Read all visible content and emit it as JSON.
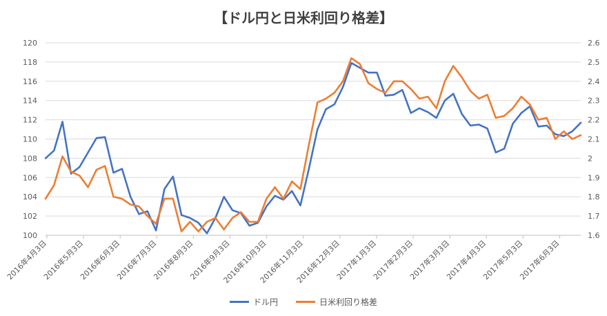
{
  "chart_data": {
    "type": "line",
    "title": "【ドル円と日米利回り格差】",
    "x_tick_labels": [
      "2016年4月3日",
      "2016年5月3日",
      "2016年6月3日",
      "2016年7月3日",
      "2016年8月3日",
      "2016年9月3日",
      "2016年10月3日",
      "2016年11月3日",
      "2016年12月3日",
      "2017年1月3日",
      "2017年2月3日",
      "2017年3月3日",
      "2017年4月3日",
      "2017年5月3日",
      "2017年6月3日"
    ],
    "y_left": {
      "min": 100,
      "max": 120,
      "step": 2,
      "ticks": [
        "100",
        "102",
        "104",
        "106",
        "108",
        "110",
        "112",
        "114",
        "116",
        "118",
        "120"
      ]
    },
    "y_right": {
      "min": 1.6,
      "max": 2.6,
      "step": 0.1,
      "ticks": [
        "1.6",
        "1.7",
        "1.8",
        "1.9",
        "2",
        "2.1",
        "2.2",
        "2.3",
        "2.4",
        "2.5",
        "2.6"
      ]
    },
    "grid": true,
    "legend_position": "bottom",
    "series": [
      {
        "name": "ドル円",
        "axis": "left",
        "color": "#4472C4",
        "values": [
          108.0,
          108.8,
          111.8,
          106.4,
          107.1,
          108.6,
          110.1,
          110.2,
          106.5,
          106.9,
          104.0,
          102.2,
          102.5,
          100.5,
          104.8,
          106.1,
          102.1,
          101.8,
          101.3,
          100.2,
          101.8,
          104.0,
          102.6,
          102.3,
          101.0,
          101.3,
          103.0,
          104.1,
          103.7,
          104.6,
          103.1,
          106.9,
          111.0,
          113.1,
          113.6,
          115.4,
          117.9,
          117.4,
          116.9,
          116.9,
          114.5,
          114.6,
          115.1,
          112.7,
          113.2,
          112.8,
          112.2,
          114.0,
          114.7,
          112.6,
          111.4,
          111.5,
          111.1,
          108.6,
          109.0,
          111.6,
          112.7,
          113.4,
          111.3,
          111.4,
          110.5,
          110.3,
          110.8,
          111.7
        ]
      },
      {
        "name": "日米利回り格差",
        "axis": "right",
        "color": "#ED7D31",
        "values": [
          1.79,
          1.86,
          2.01,
          1.93,
          1.91,
          1.85,
          1.94,
          1.96,
          1.8,
          1.79,
          1.76,
          1.75,
          1.7,
          1.66,
          1.79,
          1.79,
          1.62,
          1.67,
          1.62,
          1.67,
          1.69,
          1.63,
          1.69,
          1.72,
          1.67,
          1.67,
          1.79,
          1.85,
          1.79,
          1.88,
          1.84,
          2.07,
          2.29,
          2.31,
          2.34,
          2.4,
          2.52,
          2.49,
          2.39,
          2.36,
          2.34,
          2.4,
          2.4,
          2.36,
          2.31,
          2.32,
          2.26,
          2.4,
          2.48,
          2.42,
          2.35,
          2.31,
          2.33,
          2.21,
          2.22,
          2.26,
          2.32,
          2.28,
          2.2,
          2.21,
          2.1,
          2.14,
          2.1,
          2.12
        ]
      }
    ]
  }
}
